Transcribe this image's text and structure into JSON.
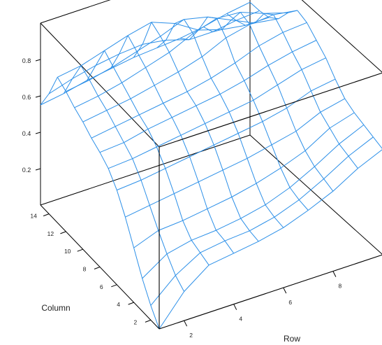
{
  "chart_data": {
    "type": "surface",
    "title": "",
    "xlabel": "Row",
    "ylabel": "Column",
    "zlabel": "",
    "xlim": [
      1,
      10
    ],
    "ylim": [
      1,
      15
    ],
    "zlim": [
      0.0,
      1.0
    ],
    "x_ticks": [
      "2",
      "4",
      "6",
      "8"
    ],
    "y_ticks": [
      "2",
      "4",
      "6",
      "8",
      "10",
      "12",
      "14"
    ],
    "z_ticks": [
      "0.2",
      "0.4",
      "0.6",
      "0.8"
    ],
    "grid": false,
    "legend": "none",
    "line_color": "#2b8fe8",
    "rows": [
      1,
      2,
      3,
      4,
      5,
      6,
      7,
      8,
      9,
      10
    ],
    "columns": [
      1,
      2,
      3,
      4,
      5,
      6,
      7,
      8,
      9,
      10,
      11,
      12,
      13,
      14,
      15
    ],
    "values": [
      [
        0.0,
        0.08,
        0.18,
        0.3,
        0.42,
        0.52,
        0.59,
        0.63,
        0.66,
        0.7,
        0.73,
        0.77,
        0.8,
        0.66,
        0.55
      ],
      [
        0.16,
        0.2,
        0.27,
        0.35,
        0.44,
        0.53,
        0.6,
        0.64,
        0.68,
        0.72,
        0.75,
        0.79,
        0.82,
        0.7,
        0.57
      ],
      [
        0.26,
        0.28,
        0.3,
        0.36,
        0.46,
        0.55,
        0.62,
        0.67,
        0.7,
        0.74,
        0.78,
        0.82,
        0.86,
        0.73,
        0.6
      ],
      [
        0.28,
        0.3,
        0.31,
        0.38,
        0.48,
        0.57,
        0.64,
        0.69,
        0.72,
        0.77,
        0.82,
        0.86,
        0.9,
        0.75,
        0.62
      ],
      [
        0.3,
        0.31,
        0.33,
        0.4,
        0.5,
        0.59,
        0.66,
        0.71,
        0.74,
        0.8,
        0.86,
        0.9,
        0.93,
        0.76,
        0.64
      ],
      [
        0.33,
        0.34,
        0.36,
        0.43,
        0.52,
        0.61,
        0.68,
        0.73,
        0.77,
        0.84,
        0.92,
        0.95,
        0.88,
        0.74,
        0.65
      ],
      [
        0.38,
        0.39,
        0.41,
        0.47,
        0.55,
        0.63,
        0.7,
        0.76,
        0.81,
        0.9,
        0.96,
        0.92,
        0.8,
        0.7,
        0.66
      ],
      [
        0.44,
        0.46,
        0.48,
        0.52,
        0.58,
        0.66,
        0.74,
        0.8,
        0.86,
        0.93,
        0.95,
        0.86,
        0.76,
        0.7,
        0.68
      ],
      [
        0.52,
        0.54,
        0.56,
        0.6,
        0.64,
        0.71,
        0.78,
        0.83,
        0.89,
        0.94,
        0.9,
        0.8,
        0.74,
        0.72,
        0.71
      ],
      [
        0.58,
        0.6,
        0.62,
        0.64,
        0.67,
        0.73,
        0.8,
        0.85,
        0.9,
        0.92,
        0.86,
        0.78,
        0.74,
        0.73,
        0.73
      ]
    ]
  }
}
